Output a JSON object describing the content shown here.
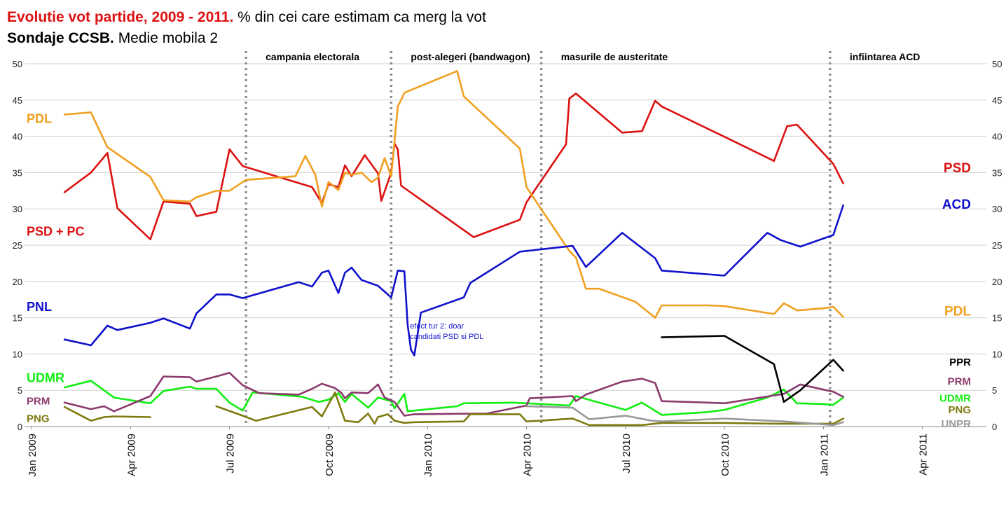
{
  "title": {
    "line1_bold": "Evolutie vot partide, 2009 - 2011.",
    "line1_rest": " % din cei care estimam ca merg la vot",
    "line2_bold": "Sondaje CCSB.",
    "line2_rest": " Medie mobila 2"
  },
  "colors": {
    "psd": "#dd1111",
    "pdl": "#f0a020",
    "pnl_acd": "#1111cc",
    "udmr": "#11ee11",
    "prm": "#8b3a6e",
    "png": "#7f7a10",
    "ppr": "#000000",
    "unpr": "#999999",
    "grid": "#d0d0d0",
    "event": "#909090"
  },
  "chart_data": {
    "type": "line",
    "title": "Evolutie vot partide, 2009 - 2011. % din cei care estimam ca merg la vot",
    "subtitle": "Sondaje CCSB. Medie mobila 2",
    "xlabel": "",
    "ylabel": "",
    "x_unit": "months since Jan 2009",
    "xlim": [
      0,
      29.5
    ],
    "ylim": [
      0,
      50
    ],
    "yticks": [
      0,
      5,
      10,
      15,
      20,
      25,
      30,
      35,
      40,
      45,
      50
    ],
    "xticks": [
      {
        "x": 0,
        "label": "Jan 2009"
      },
      {
        "x": 3,
        "label": "Apr 2009"
      },
      {
        "x": 6,
        "label": "Jul 2009"
      },
      {
        "x": 9,
        "label": "Oct 2009"
      },
      {
        "x": 12,
        "label": "Jan 2010"
      },
      {
        "x": 15,
        "label": "Apr 2010"
      },
      {
        "x": 18,
        "label": "Jul 2010"
      },
      {
        "x": 21,
        "label": "Oct 2010"
      },
      {
        "x": 24,
        "label": "Jan 2011"
      },
      {
        "x": 27,
        "label": "Apr 2011"
      }
    ],
    "grid": true,
    "events": [
      {
        "x": 6.5,
        "label": "campania electorala"
      },
      {
        "x": 10.9,
        "label": "post-alegeri (bandwagon)"
      },
      {
        "x": 15.45,
        "label": "masurile de  austeritate"
      },
      {
        "x": 24.2,
        "label": "infiintarea ACD"
      }
    ],
    "annotation": {
      "x": 11.3,
      "y": 13.5,
      "lines": [
        "efect tur 2: doar",
        "candidati PSD si PDL"
      ]
    },
    "series": [
      {
        "key": "psd",
        "name": "PSD",
        "left_label": "PSD + PC",
        "color_key": "psd",
        "points": [
          [
            1,
            32.3
          ],
          [
            1.8,
            35
          ],
          [
            2.3,
            37.7
          ],
          [
            2.6,
            30.1
          ],
          [
            3.6,
            25.8
          ],
          [
            4,
            31
          ],
          [
            4.8,
            30.7
          ],
          [
            5,
            29
          ],
          [
            5.6,
            29.6
          ],
          [
            6,
            38.2
          ],
          [
            6.4,
            35.9
          ],
          [
            8.5,
            33
          ],
          [
            8.8,
            30.8
          ],
          [
            9,
            33.4
          ],
          [
            9.3,
            33
          ],
          [
            9.5,
            36
          ],
          [
            9.7,
            34.5
          ],
          [
            10.1,
            37.4
          ],
          [
            10.5,
            34.9
          ],
          [
            10.6,
            31.1
          ],
          [
            10.9,
            35
          ],
          [
            11,
            39
          ],
          [
            11.1,
            38.2
          ],
          [
            11.2,
            33.2
          ],
          [
            13.4,
            26.1
          ],
          [
            14.8,
            28.5
          ],
          [
            15,
            30.9
          ],
          [
            16.2,
            38.9
          ],
          [
            16.3,
            45.2
          ],
          [
            16.5,
            45.9
          ],
          [
            17.9,
            40.5
          ],
          [
            18.5,
            40.7
          ],
          [
            18.9,
            44.9
          ],
          [
            19.1,
            44.1
          ],
          [
            21.2,
            39.5
          ],
          [
            22.5,
            36.6
          ],
          [
            22.9,
            41.4
          ],
          [
            23.2,
            41.6
          ],
          [
            24.3,
            36.2
          ],
          [
            24.6,
            33.5
          ]
        ]
      },
      {
        "key": "pdl",
        "name": "PDL",
        "left_label": "PDL",
        "color_key": "pdl",
        "points": [
          [
            1,
            43
          ],
          [
            1.8,
            43.3
          ],
          [
            2.3,
            38.5
          ],
          [
            3.6,
            34.4
          ],
          [
            4,
            31.2
          ],
          [
            4.8,
            31
          ],
          [
            5,
            31.6
          ],
          [
            5.6,
            32.5
          ],
          [
            6,
            32.5
          ],
          [
            6.5,
            34
          ],
          [
            8,
            34.5
          ],
          [
            8.3,
            37.3
          ],
          [
            8.6,
            34.7
          ],
          [
            8.8,
            30.3
          ],
          [
            9,
            33.7
          ],
          [
            9.3,
            32.6
          ],
          [
            9.5,
            35
          ],
          [
            9.7,
            34.7
          ],
          [
            10,
            35
          ],
          [
            10.3,
            33.7
          ],
          [
            10.5,
            34.3
          ],
          [
            10.7,
            37
          ],
          [
            10.9,
            34.5
          ],
          [
            11.1,
            44.1
          ],
          [
            11.2,
            45
          ],
          [
            11.3,
            46
          ],
          [
            12.9,
            49
          ],
          [
            13.1,
            45.5
          ],
          [
            14.8,
            38.3
          ],
          [
            15,
            33
          ],
          [
            16.3,
            24.2
          ],
          [
            16.5,
            23.3
          ],
          [
            16.8,
            19
          ],
          [
            17.2,
            19
          ],
          [
            18.3,
            17.2
          ],
          [
            18.9,
            15
          ],
          [
            19.1,
            16.7
          ],
          [
            20.5,
            16.7
          ],
          [
            21,
            16.6
          ],
          [
            22.5,
            15.5
          ],
          [
            22.8,
            17
          ],
          [
            23.2,
            16
          ],
          [
            24,
            16.3
          ],
          [
            24.3,
            16.5
          ],
          [
            24.6,
            15.1
          ]
        ]
      },
      {
        "key": "pnl_acd",
        "name": "ACD",
        "left_label": "PNL",
        "color_key": "pnl_acd",
        "points": [
          [
            1,
            12
          ],
          [
            1.8,
            11.2
          ],
          [
            2.3,
            13.9
          ],
          [
            2.6,
            13.3
          ],
          [
            3.6,
            14.3
          ],
          [
            4,
            14.9
          ],
          [
            4.8,
            13.5
          ],
          [
            5,
            15.6
          ],
          [
            5.6,
            18.2
          ],
          [
            6,
            18.2
          ],
          [
            6.4,
            17.7
          ],
          [
            8.1,
            19.9
          ],
          [
            8.5,
            19.3
          ],
          [
            8.8,
            21.2
          ],
          [
            9,
            21.5
          ],
          [
            9.3,
            18.4
          ],
          [
            9.5,
            21.2
          ],
          [
            9.7,
            21.9
          ],
          [
            10,
            20.2
          ],
          [
            10.5,
            19.4
          ],
          [
            10.9,
            17.8
          ],
          [
            11.1,
            21.5
          ],
          [
            11.3,
            21.4
          ],
          [
            11.4,
            14
          ],
          [
            11.5,
            10.6
          ],
          [
            11.6,
            9.8
          ],
          [
            11.8,
            15.7
          ],
          [
            13.1,
            17.8
          ],
          [
            13.3,
            19.8
          ],
          [
            14.8,
            24.1
          ],
          [
            16,
            24.7
          ],
          [
            16.4,
            24.9
          ],
          [
            16.8,
            22
          ],
          [
            17.9,
            26.7
          ],
          [
            18.9,
            23.2
          ],
          [
            19.1,
            21.5
          ],
          [
            21,
            20.8
          ],
          [
            22.3,
            26.7
          ],
          [
            22.7,
            25.7
          ],
          [
            23.3,
            24.8
          ],
          [
            24.3,
            26.4
          ],
          [
            24.6,
            30.5
          ]
        ]
      },
      {
        "key": "udmr",
        "name": "UDMR",
        "left_label": "UDMR",
        "color_key": "udmr",
        "points": [
          [
            1,
            5.4
          ],
          [
            1.8,
            6.3
          ],
          [
            2.5,
            4
          ],
          [
            3.6,
            3.2
          ],
          [
            4,
            4.9
          ],
          [
            4.8,
            5.5
          ],
          [
            5,
            5.2
          ],
          [
            5.6,
            5.2
          ],
          [
            6,
            3.3
          ],
          [
            6.4,
            2.2
          ],
          [
            6.7,
            4.7
          ],
          [
            8.2,
            4.1
          ],
          [
            8.7,
            3.4
          ],
          [
            9,
            3.7
          ],
          [
            9.3,
            4.6
          ],
          [
            9.5,
            3.4
          ],
          [
            9.7,
            4.5
          ],
          [
            10.2,
            2.6
          ],
          [
            10.5,
            4
          ],
          [
            10.9,
            3.5
          ],
          [
            11,
            2.5
          ],
          [
            11.3,
            4.5
          ],
          [
            11.4,
            2.1
          ],
          [
            12.9,
            2.8
          ],
          [
            13.1,
            3.2
          ],
          [
            14.6,
            3.3
          ],
          [
            16.3,
            2.9
          ],
          [
            16.5,
            4.2
          ],
          [
            18,
            2.3
          ],
          [
            18.5,
            3.3
          ],
          [
            19.1,
            1.6
          ],
          [
            20.5,
            2
          ],
          [
            21,
            2.3
          ],
          [
            22.3,
            4
          ],
          [
            22.8,
            5.1
          ],
          [
            23.2,
            3.2
          ],
          [
            24,
            3.1
          ],
          [
            24.3,
            3
          ],
          [
            24.6,
            4
          ]
        ]
      },
      {
        "key": "prm",
        "name": "PRM",
        "left_label": "PRM",
        "color_key": "prm",
        "points": [
          [
            1,
            3.3
          ],
          [
            1.8,
            2.4
          ],
          [
            2.2,
            2.8
          ],
          [
            2.5,
            2.1
          ],
          [
            3.6,
            4.2
          ],
          [
            4,
            6.9
          ],
          [
            4.8,
            6.8
          ],
          [
            5,
            6.2
          ],
          [
            5.6,
            6.9
          ],
          [
            6,
            7.4
          ],
          [
            6.4,
            5.7
          ],
          [
            6.9,
            4.6
          ],
          [
            8.1,
            4.4
          ],
          [
            8.5,
            5.2
          ],
          [
            8.8,
            5.9
          ],
          [
            9.2,
            5.3
          ],
          [
            9.4,
            4.6
          ],
          [
            9.5,
            3.9
          ],
          [
            9.7,
            4.7
          ],
          [
            10.2,
            4.6
          ],
          [
            10.5,
            5.8
          ],
          [
            10.7,
            4
          ],
          [
            11,
            3.4
          ],
          [
            11.3,
            1.5
          ],
          [
            11.6,
            1.7
          ],
          [
            13.8,
            1.8
          ],
          [
            15,
            2.9
          ],
          [
            15.1,
            3.9
          ],
          [
            16.4,
            4.2
          ],
          [
            16.5,
            3.5
          ],
          [
            16.8,
            4.4
          ],
          [
            17.9,
            6.2
          ],
          [
            18.5,
            6.6
          ],
          [
            18.9,
            6
          ],
          [
            19.1,
            3.5
          ],
          [
            20.5,
            3.3
          ],
          [
            21,
            3.2
          ],
          [
            22.8,
            4.5
          ],
          [
            23.3,
            5.8
          ],
          [
            24.3,
            4.8
          ],
          [
            24.6,
            4.1
          ]
        ]
      },
      {
        "key": "png",
        "name": "PNG",
        "left_label": "PNG",
        "color_key": "png",
        "points": [
          [
            1,
            2.7
          ],
          [
            1.8,
            0.8
          ],
          [
            2.2,
            1.3
          ],
          [
            2.5,
            1.4
          ],
          [
            3.6,
            1.3
          ],
          [
            null,
            null
          ],
          [
            5.6,
            2.8
          ],
          [
            6.4,
            1.5
          ],
          [
            6.8,
            0.8
          ],
          [
            8.5,
            2.7
          ],
          [
            8.8,
            1.4
          ],
          [
            9.2,
            4.7
          ],
          [
            9.5,
            0.8
          ],
          [
            9.9,
            0.6
          ],
          [
            10.2,
            1.8
          ],
          [
            10.4,
            0.4
          ],
          [
            10.5,
            1.3
          ],
          [
            10.8,
            1.7
          ],
          [
            11,
            0.8
          ],
          [
            11.3,
            0.5
          ],
          [
            11.6,
            0.6
          ],
          [
            13.1,
            0.7
          ],
          [
            13.3,
            1.7
          ],
          [
            14.8,
            1.7
          ],
          [
            15,
            0.7
          ],
          [
            15.4,
            0.8
          ],
          [
            16.4,
            1.1
          ],
          [
            16.9,
            0.2
          ],
          [
            18.5,
            0.2
          ],
          [
            19.1,
            0.5
          ],
          [
            21,
            0.5
          ],
          [
            22.5,
            0.4
          ],
          [
            24.3,
            0.4
          ],
          [
            24.6,
            1.1
          ]
        ]
      },
      {
        "key": "ppr",
        "name": "PPR",
        "left_label": "",
        "color_key": "ppr",
        "points": [
          [
            19.1,
            12.3
          ],
          [
            21,
            12.5
          ],
          [
            22.5,
            8.6
          ],
          [
            22.8,
            3.4
          ],
          [
            23.3,
            5
          ],
          [
            24.3,
            9.2
          ],
          [
            24.6,
            7.7
          ]
        ]
      },
      {
        "key": "unpr",
        "name": "UNPR",
        "left_label": "",
        "color_key": "unpr",
        "points": [
          [
            15,
            2.8
          ],
          [
            16.4,
            2.6
          ],
          [
            16.9,
            1
          ],
          [
            18,
            1.5
          ],
          [
            18.8,
            0.8
          ],
          [
            19.1,
            0.7
          ],
          [
            21,
            1.1
          ],
          [
            22.8,
            0.7
          ],
          [
            24.3,
            0.2
          ],
          [
            24.6,
            0.6
          ]
        ]
      }
    ],
    "right_labels": [
      {
        "text": "PSD",
        "y": 35.6,
        "color_key": "psd"
      },
      {
        "text": "ACD",
        "y": 30.6,
        "color_key": "pnl_acd"
      },
      {
        "text": "PDL",
        "y": 15.9,
        "color_key": "pdl"
      },
      {
        "text": "PPR",
        "y": 9.0,
        "color_key": "ppr"
      },
      {
        "text": "PRM",
        "y": 6.3,
        "color_key": "prm"
      },
      {
        "text": "UDMR",
        "y": 4.0,
        "color_key": "udmr"
      },
      {
        "text": "PNG",
        "y": 2.4,
        "color_key": "png"
      },
      {
        "text": "UNPR",
        "y": 0.5,
        "color_key": "unpr"
      }
    ],
    "left_labels": [
      {
        "text": "PDL",
        "y": 42.4,
        "color_key": "pdl"
      },
      {
        "text": "PSD + PC",
        "y": 26.9,
        "color_key": "psd"
      },
      {
        "text": "PNL",
        "y": 16.5,
        "color_key": "pnl_acd"
      },
      {
        "text": "UDMR",
        "y": 6.7,
        "color_key": "udmr"
      },
      {
        "text": "PRM",
        "y": 3.6,
        "color_key": "prm"
      },
      {
        "text": "PNG",
        "y": 1.2,
        "color_key": "png"
      }
    ]
  }
}
